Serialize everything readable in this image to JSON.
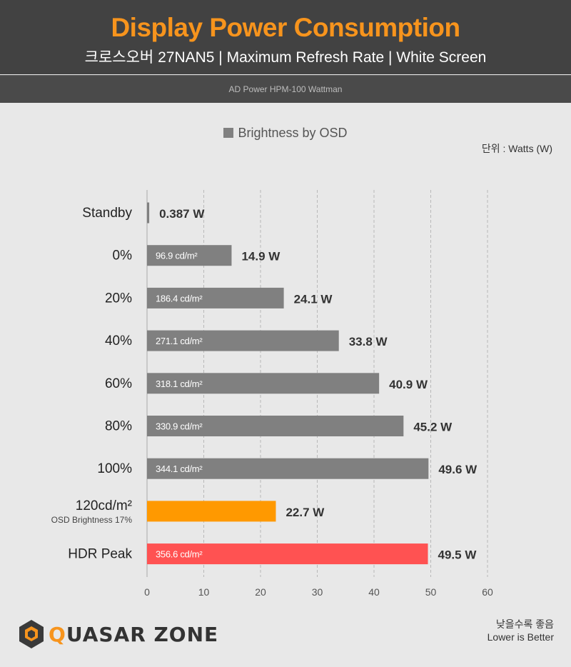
{
  "header": {
    "title": "Display Power Consumption",
    "subtitle": "크로스오버 27NAN5  |  Maximum Refresh Rate  |  White Screen",
    "source": "AD Power HPM-100 Wattman"
  },
  "legend": {
    "label": "Brightness by OSD"
  },
  "unit_label": "단위 : Watts (W)",
  "footer": {
    "logo": "QUASAR ZONE",
    "note_line1": "낮을수록 좋음",
    "note_line2": "Lower is Better"
  },
  "colors": {
    "accent": "#f7941d",
    "bar_default": "#808080",
    "bar_highlight": "#ff9900",
    "bar_hdr": "#ff5252",
    "header_bg": "#424242"
  },
  "chart_data": {
    "type": "bar",
    "orientation": "horizontal",
    "xlim": [
      0,
      60
    ],
    "xticks": [
      0,
      10,
      20,
      30,
      40,
      50,
      60
    ],
    "grid": true,
    "categories": [
      "Standby",
      "0%",
      "20%",
      "40%",
      "60%",
      "80%",
      "100%",
      "120cd/m²",
      "HDR Peak"
    ],
    "category_sublabels": [
      "",
      "",
      "",
      "",
      "",
      "",
      "",
      "OSD Brightness 17%",
      ""
    ],
    "values": [
      0.387,
      14.9,
      24.1,
      33.8,
      40.9,
      45.2,
      49.6,
      22.7,
      49.5
    ],
    "value_labels": [
      "0.387 W",
      "14.9 W",
      "24.1 W",
      "33.8 W",
      "40.9 W",
      "45.2 W",
      "49.6 W",
      "22.7 W",
      "49.5 W"
    ],
    "luminance_labels": [
      "",
      "96.9 cd/m²",
      "186.4 cd/m²",
      "271.1 cd/m²",
      "318.1 cd/m²",
      "330.9 cd/m²",
      "344.1 cd/m²",
      "",
      "356.6 cd/m²"
    ],
    "bar_colors": [
      "#808080",
      "#808080",
      "#808080",
      "#808080",
      "#808080",
      "#808080",
      "#808080",
      "#ff9900",
      "#ff5252"
    ],
    "series": [
      {
        "name": "Brightness by OSD",
        "values": [
          0.387,
          14.9,
          24.1,
          33.8,
          40.9,
          45.2,
          49.6,
          22.7,
          49.5
        ]
      }
    ]
  }
}
